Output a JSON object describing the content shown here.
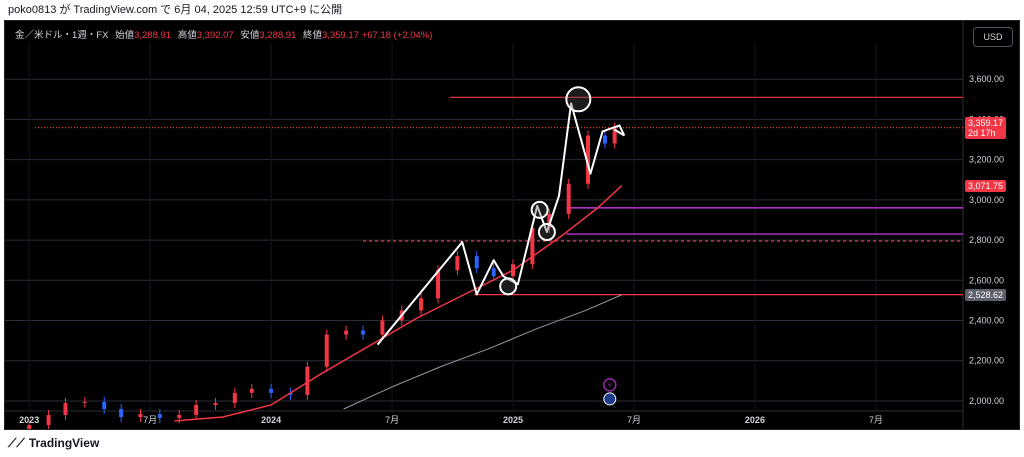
{
  "header": {
    "publisher_line": "poko0813 が TradingView.com で 6月 04, 2025 12:59 UTC+9 に公開"
  },
  "legend": {
    "symbol": "金／米ドル・1週・FX",
    "open_label": "始値",
    "open_value": "3,288.91",
    "high_label": "高値",
    "high_value": "3,392.07",
    "low_label": "安値",
    "low_value": "3,288.91",
    "close_label": "終値",
    "close_value": "3,359.17",
    "change": "+67.18 (+2.04%)"
  },
  "currency_button": "USD",
  "price_tags": {
    "last_price": "3,359.17",
    "countdown": "2d 17h",
    "ma_fast": "3,071.75",
    "ma_slow": "2,528.62"
  },
  "footer": {
    "brand": "TradingView"
  },
  "colors": {
    "background": "#000000",
    "up": "#f23645",
    "down": "#2962ff",
    "ma_fast": "#f23645",
    "ma_slow": "#9598a1",
    "annotation": "#ffffff",
    "magenta_line": "#e040fb"
  },
  "chart_data": {
    "type": "line",
    "title": "",
    "xlabel": "",
    "ylabel": "",
    "ylim": [
      1950,
      3780
    ],
    "y_ticks": [
      "3,600.00",
      "3,400.00",
      "3,200.00",
      "3,000.00",
      "2,800.00",
      "2,600.00",
      "2,400.00",
      "2,200.00",
      "2,000.00"
    ],
    "y_tick_values": [
      3600,
      3400,
      3200,
      3000,
      2800,
      2600,
      2400,
      2200,
      2000
    ],
    "x_ticks": [
      "2023",
      "7月",
      "2024",
      "7月",
      "2025",
      "7月",
      "2026",
      "7月"
    ],
    "x_tick_values": [
      2023.0,
      2023.5,
      2024.0,
      2024.5,
      2025.0,
      2025.5,
      2026.0,
      2026.5
    ],
    "xlim": [
      2022.9,
      2026.86
    ],
    "series": [
      {
        "type": "candlestick",
        "x": [
          2023.0,
          2023.08,
          2023.15,
          2023.23,
          2023.31,
          2023.38,
          2023.46,
          2023.54,
          2023.62,
          2023.69,
          2023.77,
          2023.85,
          2023.92,
          2024.0,
          2024.08,
          2024.15,
          2024.23,
          2024.31,
          2024.38,
          2024.46,
          2024.54,
          2024.62,
          2024.69,
          2024.77,
          2024.85,
          2024.92,
          2025.0,
          2025.08,
          2025.15,
          2025.23,
          2025.31,
          2025.38,
          2025.42
        ],
        "close": [
          1880,
          1930,
          1990,
          1995,
          1960,
          1920,
          1935,
          1915,
          1930,
          1980,
          1990,
          2040,
          2060,
          2040,
          2030,
          2170,
          2330,
          2350,
          2330,
          2400,
          2450,
          2510,
          2650,
          2720,
          2660,
          2620,
          2680,
          2860,
          2930,
          3080,
          3320,
          3280,
          3359
        ]
      },
      {
        "name": "",
        "x": [
          2023.6,
          2023.8,
          2024.0,
          2024.2,
          2024.4,
          2024.6,
          2024.8,
          2025.0,
          2025.2,
          2025.35,
          2025.45
        ],
        "values": [
          1900,
          1920,
          1980,
          2130,
          2270,
          2410,
          2530,
          2650,
          2820,
          2960,
          3071
        ]
      },
      {
        "name": "",
        "x": [
          2024.3,
          2024.5,
          2024.7,
          2024.9,
          2025.1,
          2025.3,
          2025.45
        ],
        "values": [
          1960,
          2070,
          2170,
          2260,
          2360,
          2450,
          2528
        ]
      }
    ],
    "horizontal_lines": [
      {
        "value": 3510,
        "style": "solid",
        "color": "#f23645"
      },
      {
        "value": 3359.17,
        "style": "dotted",
        "color": "#f23645"
      },
      {
        "value": 2960,
        "style": "solid",
        "color": "#e040fb"
      },
      {
        "value": 2830,
        "style": "solid",
        "color": "#e040fb"
      },
      {
        "value": 2795,
        "style": "dashed",
        "color": "#f23645"
      },
      {
        "value": 2528.62,
        "style": "solid",
        "color": "#f23645"
      }
    ],
    "annotation_path": {
      "x": [
        2024.44,
        2024.79,
        2024.85,
        2024.92,
        2024.96,
        2025.02,
        2025.1,
        2025.14,
        2025.19,
        2025.24,
        2025.32,
        2025.37,
        2025.44,
        2025.46
      ],
      "values": [
        2280,
        2790,
        2530,
        2700,
        2620,
        2580,
        2970,
        2840,
        3020,
        3480,
        3130,
        3340,
        3370,
        3320
      ]
    },
    "annotation_circles": [
      {
        "x": 2024.98,
        "value": 2570
      },
      {
        "x": 2025.11,
        "value": 2950
      },
      {
        "x": 2025.14,
        "value": 2840
      },
      {
        "x": 2025.27,
        "value": 3500
      }
    ]
  }
}
